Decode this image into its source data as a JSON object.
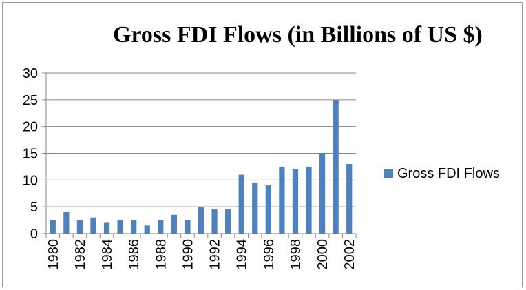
{
  "chart_data": {
    "type": "bar",
    "title": "Gross FDI Flows (in Billions of US $)",
    "xlabel": "",
    "ylabel": "",
    "ylim": [
      0,
      30
    ],
    "yticks": [
      0,
      5,
      10,
      15,
      20,
      25,
      30
    ],
    "grid": true,
    "legend_position": "right",
    "categories": [
      "1980",
      "1981",
      "1982",
      "1983",
      "1984",
      "1985",
      "1986",
      "1987",
      "1988",
      "1989",
      "1990",
      "1991",
      "1992",
      "1993",
      "1994",
      "1995",
      "1996",
      "1997",
      "1998",
      "1999",
      "2000",
      "2001",
      "2002"
    ],
    "x_tick_labels": [
      "1980",
      "1982",
      "1984",
      "1986",
      "1988",
      "1990",
      "1992",
      "1994",
      "1996",
      "1998",
      "2000",
      "2002"
    ],
    "series": [
      {
        "name": "Gross FDI Flows",
        "color": "#4f81bd",
        "values": [
          2.5,
          4,
          2.5,
          3,
          2,
          2.5,
          2.5,
          1.5,
          2.5,
          3.5,
          2.5,
          5,
          4.5,
          4.5,
          11,
          9.5,
          9,
          12.5,
          12,
          12.5,
          15,
          25,
          13
        ]
      }
    ]
  }
}
